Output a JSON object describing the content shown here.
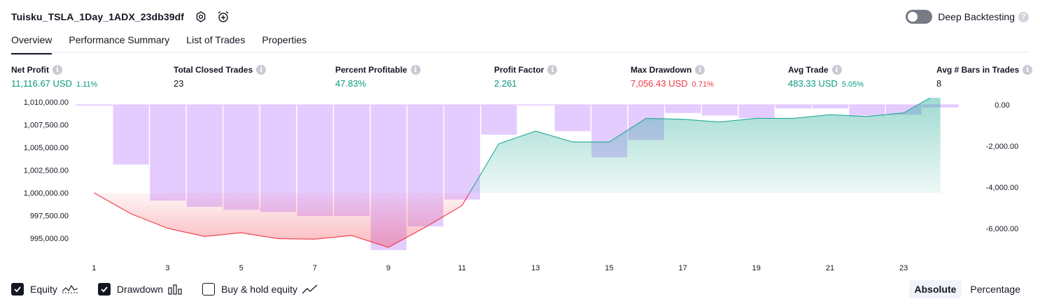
{
  "header": {
    "title": "Tuisku_TSLA_1Day_1ADX_23db39df",
    "settings_icon": "gear-icon",
    "alert_icon": "alarm-clock-plus-icon",
    "deep_label": "Deep Backtesting",
    "deep_enabled": false,
    "help_glyph": "?"
  },
  "tabs": [
    {
      "label": "Overview",
      "active": true
    },
    {
      "label": "Performance Summary",
      "active": false
    },
    {
      "label": "List of Trades",
      "active": false
    },
    {
      "label": "Properties",
      "active": false
    }
  ],
  "metrics": {
    "info_glyph": "i",
    "net_profit": {
      "label": "Net Profit",
      "value": "11,116.67 USD",
      "sub": "1.11%"
    },
    "closed_trades": {
      "label": "Total Closed Trades",
      "value": "23"
    },
    "percent_profitable": {
      "label": "Percent Profitable",
      "value": "47.83%"
    },
    "profit_factor": {
      "label": "Profit Factor",
      "value": "2.261"
    },
    "max_drawdown": {
      "label": "Max Drawdown",
      "value": "7,056.43 USD",
      "sub": "0.71%"
    },
    "avg_trade": {
      "label": "Avg Trade",
      "value": "483.33 USD",
      "sub": "5.05%"
    },
    "avg_bars": {
      "label": "Avg # Bars in Trades",
      "value": "8"
    }
  },
  "colors": {
    "profit_green": "#089981",
    "loss_red": "#f23645",
    "drawdown_bar": "#e1c3ff",
    "equity_line_up": "#22ab94",
    "equity_line_down": "#f23645"
  },
  "chart_data": {
    "type": "area",
    "x": [
      1,
      2,
      3,
      4,
      5,
      6,
      7,
      8,
      9,
      10,
      11,
      12,
      13,
      14,
      15,
      16,
      17,
      18,
      19,
      20,
      21,
      22,
      23,
      24
    ],
    "x_tick_labels": [
      "1",
      "3",
      "5",
      "7",
      "9",
      "11",
      "13",
      "15",
      "17",
      "19",
      "21",
      "23"
    ],
    "equity_baseline": 1000000,
    "left_axis": {
      "min": 993000,
      "max": 1011000,
      "ticks": [
        "1,010,000.00",
        "1,007,500.00",
        "1,005,000.00",
        "1,002,500.00",
        "1,000,000.00",
        "997,500.00",
        "995,000.00"
      ],
      "tick_values": [
        1010000,
        1007500,
        1005000,
        1002500,
        1000000,
        997500,
        995000
      ]
    },
    "right_axis": {
      "min": -7000,
      "max": 0,
      "ticks": [
        "0.00",
        "-2,000.00",
        "-4,000.00",
        "-6,000.00"
      ],
      "tick_values": [
        0,
        -2000,
        -4000,
        -6000
      ]
    },
    "series": [
      {
        "name": "Equity",
        "type": "line-area",
        "axis": "left",
        "values": [
          1000000,
          997700,
          996100,
          995200,
          995600,
          994950,
          994900,
          995300,
          994000,
          996200,
          998600,
          1005400,
          1006800,
          1005600,
          1005600,
          1008200,
          1008100,
          1007800,
          1008200,
          1008200,
          1008600,
          1008400,
          1008800,
          1011100
        ]
      },
      {
        "name": "Drawdown",
        "type": "bar",
        "axis": "right",
        "values": [
          -40,
          -2900,
          -4650,
          -4950,
          -5100,
          -5200,
          -5400,
          -5400,
          -7050,
          -5900,
          -4600,
          -1450,
          -10,
          -1280,
          -2550,
          -1700,
          -400,
          -520,
          -650,
          -180,
          -180,
          -520,
          -480,
          -130
        ]
      }
    ],
    "legend": {
      "equity_label": "Equity",
      "equity_checked": true,
      "drawdown_label": "Drawdown",
      "drawdown_checked": true,
      "buyhold_label": "Buy & hold equity",
      "buyhold_checked": false
    },
    "modes": {
      "absolute": "Absolute",
      "percentage": "Percentage",
      "active": "absolute"
    }
  }
}
